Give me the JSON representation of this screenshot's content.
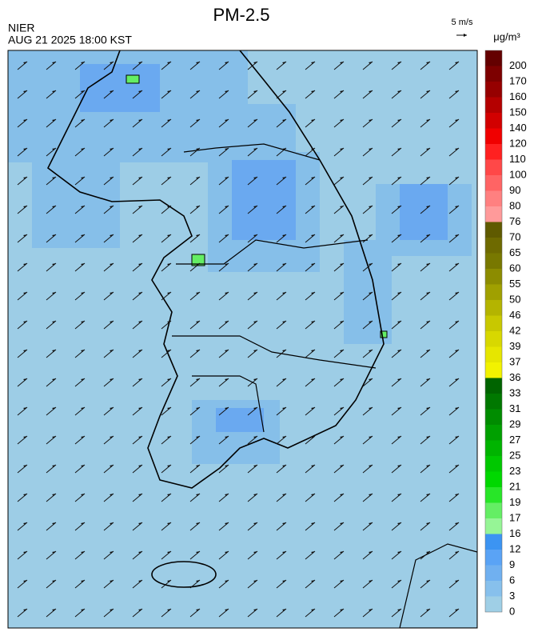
{
  "header": {
    "title": "PM-2.5",
    "agency": "NIER",
    "time": "AUG 21 2025 18:00 KST",
    "wind_scale": "5 m/s"
  },
  "colorbar": {
    "unit": "μg/m³",
    "labels": [
      0,
      3,
      6,
      9,
      12,
      16,
      17,
      19,
      21,
      23,
      25,
      27,
      29,
      31,
      33,
      36,
      37,
      39,
      42,
      46,
      50,
      55,
      60,
      65,
      70,
      76,
      80,
      90,
      100,
      110,
      120,
      140,
      150,
      160,
      170,
      200
    ],
    "colors": [
      "#9fcfe6",
      "#87c0ec",
      "#70b0f0",
      "#5aa3f5",
      "#3c94f2",
      "#96f596",
      "#64ee64",
      "#28e628",
      "#00d800",
      "#00c800",
      "#00b400",
      "#00a000",
      "#008c00",
      "#007800",
      "#006400",
      "#f2f200",
      "#e6e600",
      "#d8d800",
      "#c8c800",
      "#b4b400",
      "#a0a000",
      "#8c8c00",
      "#787800",
      "#6e6a00",
      "#5f5a00",
      "#ff9a9a",
      "#ff8080",
      "#ff6464",
      "#ff4848",
      "#ff2020",
      "#f00000",
      "#d20000",
      "#b40000",
      "#960000",
      "#7d0000",
      "#640000"
    ]
  }
}
